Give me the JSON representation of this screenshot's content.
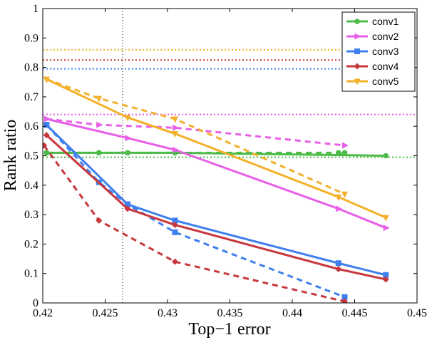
{
  "chart_data": {
    "type": "line",
    "title": "",
    "xlabel": "Top−1 error",
    "ylabel": "Rank ratio",
    "xlim": [
      0.42,
      0.45
    ],
    "ylim": [
      0,
      1
    ],
    "xticks": [
      0.42,
      0.425,
      0.43,
      0.435,
      0.44,
      0.445,
      0.45
    ],
    "xtick_labels": [
      "0.42",
      "0.425",
      "0.43",
      "0.435",
      "0.44",
      "0.445",
      "0.45"
    ],
    "yticks": [
      0,
      0.1,
      0.2,
      0.3,
      0.4,
      0.5,
      0.6,
      0.7,
      0.8,
      0.9,
      1
    ],
    "ytick_labels": [
      "0",
      "0.1",
      "0.2",
      "0.3",
      "0.4",
      "0.5",
      "0.6",
      "0.7",
      "0.8",
      "0.9",
      "1"
    ],
    "grid": false,
    "legend_position": "top-right",
    "vertical_reference_line": {
      "x": 0.4264,
      "color": "#000000"
    },
    "series": [
      {
        "name": "conv1",
        "color": "#4cbb47",
        "marker": "circle",
        "solid": {
          "x": [
            0.4203,
            0.4245,
            0.4268,
            0.4306,
            0.4475
          ],
          "y": [
            0.51,
            0.51,
            0.51,
            0.51,
            0.5
          ]
        },
        "dashed": {
          "x": [
            0.4203,
            0.4245,
            0.4268,
            0.4306,
            0.4437,
            0.4442
          ],
          "y": [
            0.51,
            0.51,
            0.51,
            0.51,
            0.51,
            0.51
          ]
        },
        "reference": 0.495
      },
      {
        "name": "conv2",
        "color": "#e85fe8",
        "marker": "triangle-right",
        "solid": {
          "x": [
            0.4203,
            0.4268,
            0.4306,
            0.4437,
            0.4475
          ],
          "y": [
            0.625,
            0.56,
            0.52,
            0.32,
            0.255
          ]
        },
        "dashed": {
          "x": [
            0.4203,
            0.4245,
            0.4306,
            0.4442
          ],
          "y": [
            0.625,
            0.605,
            0.595,
            0.535
          ]
        },
        "reference": 0.64
      },
      {
        "name": "conv3",
        "color": "#3f7fef",
        "marker": "square",
        "solid": {
          "x": [
            0.4203,
            0.4268,
            0.4306,
            0.4437,
            0.4475
          ],
          "y": [
            0.605,
            0.335,
            0.28,
            0.135,
            0.095
          ]
        },
        "dashed": {
          "x": [
            0.4203,
            0.4245,
            0.4268,
            0.4306,
            0.4442
          ],
          "y": [
            0.605,
            0.41,
            0.335,
            0.24,
            0.02
          ]
        },
        "reference": 0.795
      },
      {
        "name": "conv4",
        "color": "#c8373e",
        "marker": "diamond",
        "solid": {
          "x": [
            0.4203,
            0.4268,
            0.4306,
            0.4437,
            0.4475
          ],
          "y": [
            0.57,
            0.32,
            0.265,
            0.115,
            0.08
          ]
        },
        "dashed": {
          "x": [
            0.4201,
            0.4245,
            0.4306,
            0.4442
          ],
          "y": [
            0.535,
            0.28,
            0.14,
            0.005
          ]
        },
        "reference": 0.825
      },
      {
        "name": "conv5",
        "color": "#f3b02a",
        "marker": "triangle-down",
        "solid": {
          "x": [
            0.4203,
            0.4268,
            0.4306,
            0.4437,
            0.4475
          ],
          "y": [
            0.76,
            0.63,
            0.575,
            0.36,
            0.29
          ]
        },
        "dashed": {
          "x": [
            0.4203,
            0.4245,
            0.4306,
            0.4442
          ],
          "y": [
            0.76,
            0.695,
            0.625,
            0.37
          ]
        },
        "reference": 0.86
      }
    ]
  }
}
